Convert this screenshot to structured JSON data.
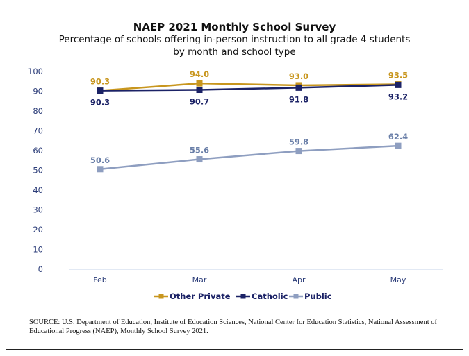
{
  "chart_data": {
    "type": "line",
    "title": "NAEP 2021 Monthly School Survey",
    "subtitle_lines": [
      "Percentage of schools offering in-person instruction to all grade 4 students",
      "by month and school type"
    ],
    "categories": [
      "Feb",
      "Mar",
      "Apr",
      "May"
    ],
    "ylim": [
      0,
      100
    ],
    "yticks": [
      "0",
      "10",
      "20",
      "30",
      "40",
      "50",
      "60",
      "70",
      "80",
      "90",
      "100"
    ],
    "grid": false,
    "legend_position": "bottom",
    "series": [
      {
        "name": "Other Private",
        "color": "#C8961E",
        "values": [
          90.3,
          94.0,
          93.0,
          93.5
        ],
        "labels": [
          "90.3",
          "94.0",
          "93.0",
          "93.5"
        ],
        "label_pos": "above"
      },
      {
        "name": "Catholic",
        "color": "#1B2266",
        "values": [
          90.3,
          90.7,
          91.8,
          93.2
        ],
        "labels": [
          "90.3",
          "90.7",
          "91.8",
          "93.2"
        ],
        "label_pos": "below"
      },
      {
        "name": "Public",
        "color": "#8E9EC0",
        "values": [
          50.6,
          55.6,
          59.8,
          62.4
        ],
        "labels": [
          "50.6",
          "55.6",
          "59.8",
          "62.4"
        ],
        "label_pos": "above"
      }
    ]
  },
  "source": "SOURCE:  U.S. Department of Education, Institute of Education Sciences, National Center for Education Statistics, National Assessment of Educational Progress (NAEP), Monthly School Survey 2021."
}
